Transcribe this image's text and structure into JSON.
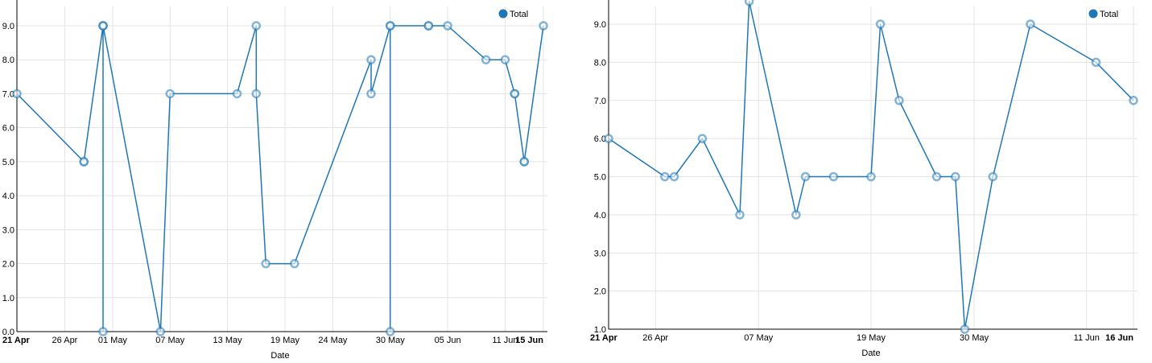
{
  "chart_data": [
    {
      "type": "line",
      "x_axis_type": "date",
      "year_assumed": 2015,
      "xlabel": "Date",
      "ylabel": "",
      "ylim": [
        0,
        9
      ],
      "y_ticks": [
        "0.0",
        "1.0",
        "2.0",
        "3.0",
        "4.0",
        "5.0",
        "6.0",
        "7.0",
        "8.0",
        "9.0"
      ],
      "x_range": [
        "2015-04-21",
        "2015-06-15"
      ],
      "x_ticks": [
        {
          "date": "2015-04-21",
          "label": "21 Apr",
          "bold": true
        },
        {
          "date": "2015-04-26",
          "label": "26 Apr",
          "bold": false
        },
        {
          "date": "2015-05-01",
          "label": "01 May",
          "bold": false
        },
        {
          "date": "2015-05-07",
          "label": "07 May",
          "bold": false
        },
        {
          "date": "2015-05-13",
          "label": "13 May",
          "bold": false
        },
        {
          "date": "2015-05-19",
          "label": "19 May",
          "bold": false
        },
        {
          "date": "2015-05-24",
          "label": "24 May",
          "bold": false
        },
        {
          "date": "2015-05-30",
          "label": "30 May",
          "bold": false
        },
        {
          "date": "2015-06-05",
          "label": "05 Jun",
          "bold": false
        },
        {
          "date": "2015-06-11",
          "label": "11 Jun",
          "bold": false
        },
        {
          "date": "2015-06-15",
          "label": "15 Jun",
          "bold": true
        }
      ],
      "grid": true,
      "legend_position": "top-right",
      "series": [
        {
          "name": "Total",
          "color": "#1f77b4",
          "points": [
            {
              "date": "2015-04-21",
              "value": 7
            },
            {
              "date": "2015-04-28",
              "value": 5
            },
            {
              "date": "2015-04-28",
              "value": 5
            },
            {
              "date": "2015-04-30",
              "value": 9
            },
            {
              "date": "2015-04-30",
              "value": 9
            },
            {
              "date": "2015-04-30",
              "value": 0
            },
            {
              "date": "2015-04-30",
              "value": 9
            },
            {
              "date": "2015-05-06",
              "value": 0
            },
            {
              "date": "2015-05-07",
              "value": 7
            },
            {
              "date": "2015-05-14",
              "value": 7
            },
            {
              "date": "2015-05-16",
              "value": 9
            },
            {
              "date": "2015-05-16",
              "value": 7
            },
            {
              "date": "2015-05-17",
              "value": 2
            },
            {
              "date": "2015-05-20",
              "value": 2
            },
            {
              "date": "2015-05-28",
              "value": 8
            },
            {
              "date": "2015-05-28",
              "value": 7
            },
            {
              "date": "2015-05-30",
              "value": 9
            },
            {
              "date": "2015-05-30",
              "value": 0
            },
            {
              "date": "2015-05-30",
              "value": 9
            },
            {
              "date": "2015-06-03",
              "value": 9
            },
            {
              "date": "2015-06-03",
              "value": 9
            },
            {
              "date": "2015-06-05",
              "value": 9
            },
            {
              "date": "2015-06-09",
              "value": 8
            },
            {
              "date": "2015-06-11",
              "value": 8
            },
            {
              "date": "2015-06-12",
              "value": 7
            },
            {
              "date": "2015-06-12",
              "value": 7
            },
            {
              "date": "2015-06-13",
              "value": 5
            },
            {
              "date": "2015-06-13",
              "value": 5
            },
            {
              "date": "2015-06-15",
              "value": 9
            }
          ]
        }
      ]
    },
    {
      "type": "line",
      "x_axis_type": "date",
      "year_assumed": 2015,
      "xlabel": "Date",
      "ylabel": "",
      "ylim": [
        1,
        9.6
      ],
      "y_ticks": [
        "1.0",
        "2.0",
        "3.0",
        "4.0",
        "5.0",
        "6.0",
        "7.0",
        "8.0",
        "9.0"
      ],
      "x_range": [
        "2015-04-21",
        "2015-06-16"
      ],
      "x_ticks": [
        {
          "date": "2015-04-21",
          "label": "21 Apr",
          "bold": true
        },
        {
          "date": "2015-04-26",
          "label": "26 Apr",
          "bold": false
        },
        {
          "date": "2015-05-07",
          "label": "07 May",
          "bold": false
        },
        {
          "date": "2015-05-19",
          "label": "19 May",
          "bold": false
        },
        {
          "date": "2015-05-30",
          "label": "30 May",
          "bold": false
        },
        {
          "date": "2015-06-11",
          "label": "11 Jun",
          "bold": false
        },
        {
          "date": "2015-06-16",
          "label": "16 Jun",
          "bold": true
        }
      ],
      "grid": true,
      "legend_position": "top-right",
      "series": [
        {
          "name": "Total",
          "color": "#1f77b4",
          "points": [
            {
              "date": "2015-04-21",
              "value": 6
            },
            {
              "date": "2015-04-27",
              "value": 5
            },
            {
              "date": "2015-04-28",
              "value": 5
            },
            {
              "date": "2015-05-01",
              "value": 6
            },
            {
              "date": "2015-05-05",
              "value": 4
            },
            {
              "date": "2015-05-06",
              "value": 9.6
            },
            {
              "date": "2015-05-11",
              "value": 4
            },
            {
              "date": "2015-05-12",
              "value": 5
            },
            {
              "date": "2015-05-15",
              "value": 5
            },
            {
              "date": "2015-05-19",
              "value": 5
            },
            {
              "date": "2015-05-20",
              "value": 9
            },
            {
              "date": "2015-05-22",
              "value": 7
            },
            {
              "date": "2015-05-26",
              "value": 5
            },
            {
              "date": "2015-05-28",
              "value": 5
            },
            {
              "date": "2015-05-29",
              "value": 1
            },
            {
              "date": "2015-06-01",
              "value": 5
            },
            {
              "date": "2015-06-05",
              "value": 9
            },
            {
              "date": "2015-06-12",
              "value": 8
            },
            {
              "date": "2015-06-16",
              "value": 7
            }
          ]
        }
      ]
    }
  ]
}
